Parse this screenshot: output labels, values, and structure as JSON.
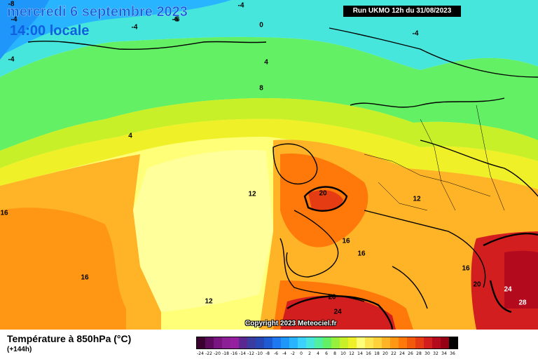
{
  "header": {
    "date": "mercredi 6 septembre 2023",
    "local_time": "14:00 locale",
    "run": "Run UKMO 12h du 31/08/2023"
  },
  "copyright": "Copyright 2023 Meteociel.fr",
  "footer": {
    "title": "Température à 850hPa (°C)",
    "subtitle": "(+144h)"
  },
  "legend": {
    "ticks": [
      "-24",
      "-22",
      "-20",
      "-18",
      "-16",
      "-14",
      "-12",
      "-10",
      "-8",
      "-6",
      "-4",
      "-2",
      "0",
      "2",
      "4",
      "6",
      "8",
      "10",
      "12",
      "14",
      "16",
      "18",
      "20",
      "22",
      "24",
      "26",
      "28",
      "30",
      "32",
      "34",
      "36"
    ],
    "colors": [
      "#3a0030",
      "#5c0a5c",
      "#7a1480",
      "#8c1e96",
      "#961ea0",
      "#5a2890",
      "#3a3ca0",
      "#2846b4",
      "#1e5ad2",
      "#1e78f0",
      "#1e96fa",
      "#28b4ff",
      "#3cd2ff",
      "#46e6dc",
      "#50f0a0",
      "#64f064",
      "#96f03c",
      "#c8f028",
      "#f0f028",
      "#ffff78",
      "#ffe650",
      "#ffd23c",
      "#ffb428",
      "#ff9614",
      "#ff780a",
      "#f05a0a",
      "#e63c14",
      "#d21e1e",
      "#b40a1e",
      "#960014",
      "#000000"
    ]
  },
  "contour_labels": [
    {
      "text": "-8"
    },
    {
      "text": "-6"
    },
    {
      "text": "-4"
    },
    {
      "text": "-4"
    },
    {
      "text": "-6"
    },
    {
      "text": "-4"
    },
    {
      "text": "0"
    },
    {
      "text": "-4"
    },
    {
      "text": "-4"
    },
    {
      "text": "4"
    },
    {
      "text": "8"
    },
    {
      "text": "4"
    },
    {
      "text": "12"
    },
    {
      "text": "16"
    },
    {
      "text": "20"
    },
    {
      "text": "12"
    },
    {
      "text": "16"
    },
    {
      "text": "16"
    },
    {
      "text": "16"
    },
    {
      "text": "12"
    },
    {
      "text": "16"
    },
    {
      "text": "20"
    },
    {
      "text": "20"
    },
    {
      "text": "24"
    },
    {
      "text": "24"
    },
    {
      "text": "28"
    }
  ]
}
